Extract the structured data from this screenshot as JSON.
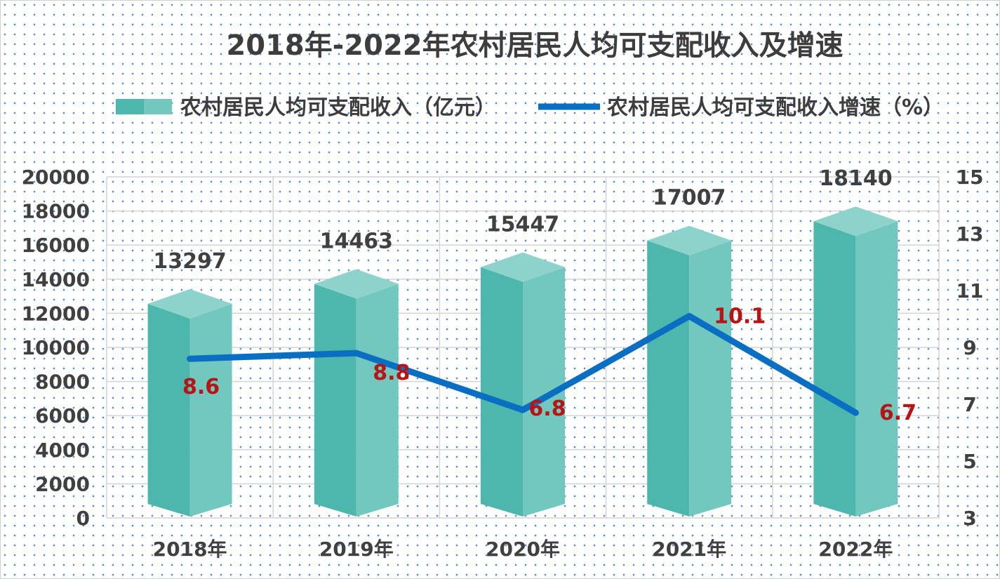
{
  "chart_data": {
    "type": "bar",
    "title": "2018年-2022年农村居民人均可支配收入及增速",
    "categories": [
      "2018年",
      "2019年",
      "2020年",
      "2021年",
      "2022年"
    ],
    "series": [
      {
        "name": "农村居民人均可支配收入（亿元）",
        "type": "bar",
        "axis": "left",
        "values": [
          13297,
          14463,
          15447,
          17007,
          18140
        ]
      },
      {
        "name": "农村居民人均可支配收入增速（%）",
        "type": "line",
        "axis": "right",
        "values": [
          8.6,
          8.8,
          6.8,
          10.1,
          6.7
        ]
      }
    ],
    "y_left": {
      "range": [
        0,
        20000
      ],
      "ticks": [
        "0",
        "2000",
        "4000",
        "6000",
        "8000",
        "10000",
        "12000",
        "14000",
        "16000",
        "18000",
        "20000"
      ]
    },
    "y_right": {
      "range": [
        3,
        15
      ],
      "ticks": [
        "3",
        "5",
        "7",
        "9",
        "11",
        "13",
        "15"
      ]
    },
    "grid": true,
    "legend_position": "top",
    "colors": {
      "bar_front": "#4db6ad",
      "bar_side": "#72c8bf",
      "bar_top": "#8dd3cb",
      "line": "#0a6fc2",
      "line_label": "#b81414",
      "text": "#404040",
      "grid": "#d4d4d4"
    }
  }
}
